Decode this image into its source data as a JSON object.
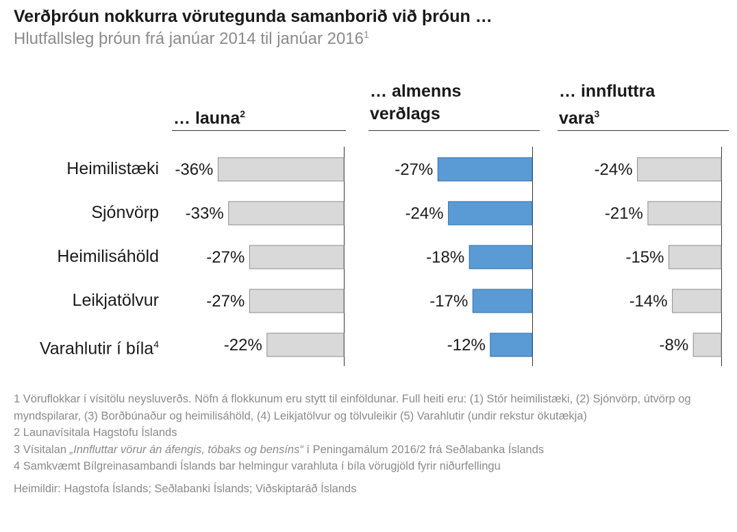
{
  "title": "Verðþróun nokkurra vörutegunda samanborið við þróun …",
  "subtitle": "Hlutfallsleg þróun frá janúar 2014 til janúar 2016",
  "subtitle_sup": "1",
  "colors": {
    "gray_bar": "#d9d9d9",
    "gray_bar_stroke": "#8c8c8c",
    "blue_bar": "#5b9bd5",
    "blue_bar_stroke": "#2f6ea8",
    "text": "#1a1a1a",
    "muted": "#8a8a8a"
  },
  "chart_data": [
    {
      "type": "bar",
      "title": "… launa",
      "title_sup": "2",
      "categories": [
        "Heimilistæki",
        "Sjónvörp",
        "Heimilisáhöld",
        "Leikjatölvur",
        "Varahlutir í bíla"
      ],
      "values": [
        -36,
        -33,
        -27,
        -27,
        -22
      ],
      "data_labels": [
        "-36%",
        "-33%",
        "-27%",
        "-27%",
        "-22%"
      ],
      "color": "#d9d9d9"
    },
    {
      "type": "bar",
      "title_line1": "… almenns",
      "title_line2": "verðlags",
      "categories": [
        "Heimilistæki",
        "Sjónvörp",
        "Heimilisáhöld",
        "Leikjatölvur",
        "Varahlutir í bíla"
      ],
      "values": [
        -27,
        -24,
        -18,
        -17,
        -12
      ],
      "data_labels": [
        "-27%",
        "-24%",
        "-18%",
        "-17%",
        "-12%"
      ],
      "color": "#5b9bd5"
    },
    {
      "type": "bar",
      "title_line1": "… innfluttra",
      "title_line2": "vara",
      "title_sup": "3",
      "categories": [
        "Heimilistæki",
        "Sjónvörp",
        "Heimilisáhöld",
        "Leikjatölvur",
        "Varahlutir í bíla"
      ],
      "values": [
        -24,
        -21,
        -15,
        -14,
        -8
      ],
      "data_labels": [
        "-24%",
        "-21%",
        "-15%",
        "-14%",
        "-8%"
      ],
      "color": "#d9d9d9"
    }
  ],
  "categories": [
    "Heimilistæki",
    "Sjónvörp",
    "Heimilisáhöld",
    "Leikjatölvur",
    "Varahlutir í bíla"
  ],
  "category_sup": "4",
  "footnotes": [
    "1 Vöruflokkar í vísitölu neysluverðs. Nöfn á flokkunum eru stytt til einföldunar. Full heiti eru: (1) Stór heimilistæki, (2) Sjónvörp, útvörp og myndspilarar, (3) Borðbúnaður og heimilisáhöld, (4) Leikjatölvur og tölvuleikir (5) Varahlutir (undir rekstur ökutækja)",
    "2 Launavísitala Hagstofu Íslands"
  ],
  "footnote3": {
    "prefix": "3 Vísitalan ",
    "italic": "„Innfluttar vörur án áfengis, tóbaks og bensíns“",
    "suffix": " í Peningamálum 2016/2 frá Seðlabanka Íslands"
  },
  "footnote4": "4 Samkvæmt Bílgreinasambandi Íslands bar helmingur varahluta í bíla vörugjöld fyrir niðurfellingu",
  "sources": "Heimildir: Hagstofa Íslands; Seðlabanki Íslands; Viðskiptaráð Íslands"
}
